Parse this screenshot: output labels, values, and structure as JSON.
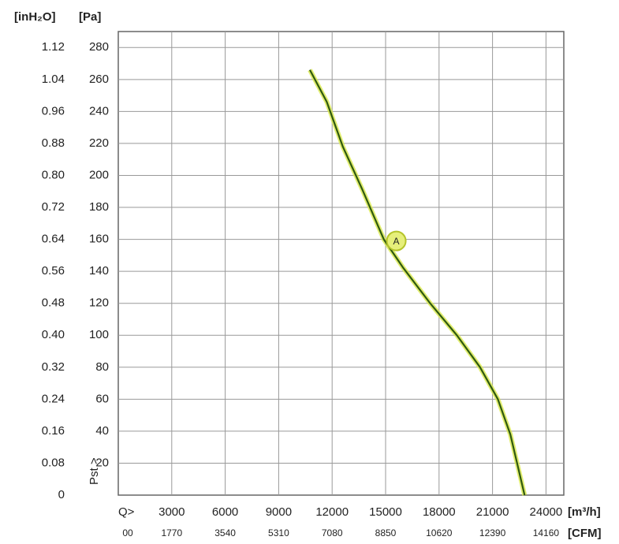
{
  "chart_data": {
    "type": "line",
    "x": [
      10750,
      11700,
      12600,
      13700,
      14900,
      16000,
      17500,
      19000,
      20300,
      21300,
      22000,
      22800
    ],
    "series": [
      {
        "color": "#2f5a0f",
        "values": [
          266,
          246,
          218,
          191,
          160,
          142,
          120,
          100,
          80,
          60,
          38,
          0
        ]
      }
    ],
    "xlim": [
      0,
      25000
    ],
    "xticks": [
      3000,
      6000,
      9000,
      12000,
      15000,
      18000,
      21000,
      24000
    ],
    "x2lim": [
      0,
      14750
    ],
    "x2ticks": [
      {
        "value": 0,
        "label": "00"
      },
      1770,
      3540,
      5310,
      7080,
      8850,
      10620,
      12390,
      14160
    ],
    "ylim": [
      0,
      290
    ],
    "yticks": [
      20,
      40,
      60,
      80,
      100,
      120,
      140,
      160,
      180,
      200,
      220,
      240,
      260,
      280
    ],
    "y2lim": [
      0,
      1.16
    ],
    "y2ticks": [
      0,
      0.08,
      0.16,
      0.24,
      0.32,
      {
        "value": 0.4,
        "label": "0.40"
      },
      0.48,
      0.56,
      0.64,
      0.72,
      {
        "value": 0.8,
        "label": "0.80"
      },
      0.88,
      0.96,
      1.04,
      1.12
    ],
    "xlabel": "[m³/h]",
    "x2label": "[CFM]",
    "ylabel": "[Pa]",
    "y2label": "[inH₂O]",
    "x_quantity": "Q>",
    "y_quantity": "Pst >",
    "grid": true,
    "annotations": [
      {
        "text": "A",
        "x": 15600,
        "y": 159
      }
    ]
  }
}
